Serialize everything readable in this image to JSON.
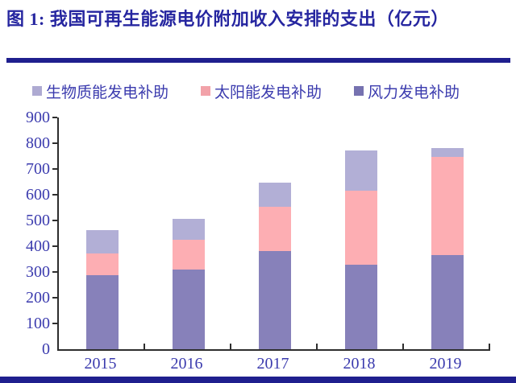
{
  "figure": {
    "title": "图 1: 我国可再生能源电价附加收入安排的支出（亿元）",
    "title_color": "#2626a0",
    "rule_color": "#1f1f8e"
  },
  "legend": {
    "position": "top",
    "text_color": "#3b3bae",
    "items": [
      {
        "label": "生物质能发电补助",
        "swatch_color": "#aeaad2"
      },
      {
        "label": "太阳能发电补助",
        "swatch_color": "#f2a2a9"
      },
      {
        "label": "风力发电补助",
        "swatch_color": "#7672b0"
      }
    ]
  },
  "chart_data": {
    "type": "bar",
    "stacked": true,
    "title": "我国可再生能源电价附加收入安排的支出（亿元）",
    "unit": "亿元",
    "categories": [
      "2015",
      "2016",
      "2017",
      "2018",
      "2019"
    ],
    "series": [
      {
        "name": "风力发电补助",
        "color": "#8781ba",
        "values": [
          289,
          309,
          381,
          327,
          367
        ]
      },
      {
        "name": "太阳能发电补助",
        "color": "#fdaeb3",
        "values": [
          84,
          117,
          171,
          289,
          380
        ]
      },
      {
        "name": "生物质能发电补助",
        "color": "#b2afd6",
        "values": [
          88,
          79,
          96,
          155,
          33
        ]
      }
    ],
    "totals": [
      461,
      505,
      648,
      771,
      780
    ],
    "xlabel": "",
    "ylabel": "",
    "ylim": [
      0,
      900
    ],
    "yticks": [
      0,
      100,
      200,
      300,
      400,
      500,
      600,
      700,
      800,
      900
    ],
    "grid": false,
    "axis_color": "#2e2e2e",
    "tick_label_color": "#3b3bae",
    "legend_order_on_screen": [
      "生物质能发电补助",
      "太阳能发电补助",
      "风力发电补助"
    ]
  }
}
